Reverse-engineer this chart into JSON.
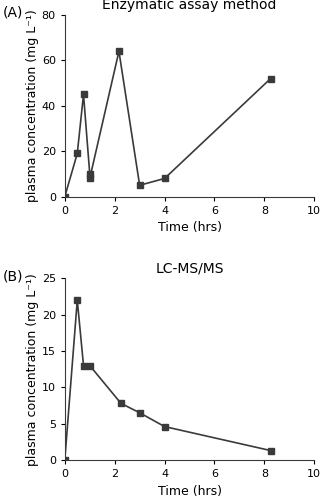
{
  "panel_A": {
    "title": "Enzymatic assay method",
    "label": "(A)",
    "x": [
      0,
      0.5,
      0.75,
      1.0,
      1.0,
      2.17,
      3.0,
      4.0,
      8.25
    ],
    "y": [
      0,
      19,
      45,
      10,
      8,
      64,
      5,
      8,
      52
    ],
    "xlabel": "Time (hrs)",
    "ylabel": "plasma concentration (mg L⁻¹)",
    "xlim": [
      0,
      10
    ],
    "ylim": [
      0,
      80
    ],
    "xticks": [
      0,
      2,
      4,
      6,
      8,
      10
    ],
    "yticks": [
      0,
      20,
      40,
      60,
      80
    ]
  },
  "panel_B": {
    "title": "LC-MS/MS",
    "label": "(B)",
    "x": [
      0,
      0.5,
      0.75,
      1.0,
      2.25,
      3.0,
      4.0,
      8.25
    ],
    "y": [
      0,
      22,
      13,
      13,
      7.8,
      6.5,
      4.6,
      1.3
    ],
    "xlabel": "Time (hrs)",
    "ylabel": "plasma concentration (mg L⁻¹)",
    "xlim": [
      0,
      10
    ],
    "ylim": [
      0,
      25
    ],
    "xticks": [
      0,
      2,
      4,
      6,
      8,
      10
    ],
    "yticks": [
      0,
      5,
      10,
      15,
      20,
      25
    ]
  },
  "line_color": "#3a3a3a",
  "marker": "s",
  "markersize": 4,
  "linewidth": 1.2,
  "title_fontsize": 10,
  "label_fontsize": 9,
  "tick_fontsize": 8,
  "background_color": "#ffffff"
}
